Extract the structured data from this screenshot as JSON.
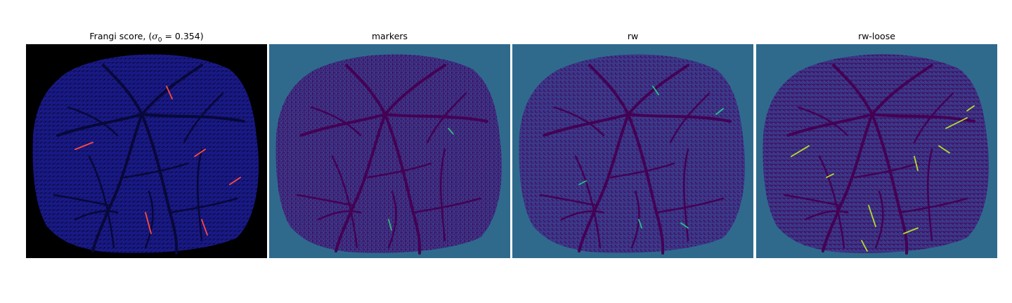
{
  "figure": {
    "panels": [
      {
        "id": "frangi",
        "title_text": "Frangi score, (",
        "title_symbol": "σ",
        "title_subscript": "0",
        "title_equals": " = 0.354)",
        "colormap": "gnuplot2",
        "background_color": "#000000",
        "tissue_color": "#1a1a8c",
        "vessel_color": "#08083a",
        "highlight_color": "#ff4a3a"
      },
      {
        "id": "markers",
        "title": "markers",
        "colormap": "viridis",
        "background_color": "#2f6a8c",
        "tissue_color": "#3a3a8a",
        "vessel_color": "#440154",
        "highlight_color": "#35b779"
      },
      {
        "id": "rw",
        "title": "rw",
        "colormap": "viridis",
        "background_color": "#2f6a8c",
        "tissue_color": "#3a3a8a",
        "vessel_color": "#440154",
        "highlight_color": "#21c58a"
      },
      {
        "id": "rw-loose",
        "title": "rw-loose",
        "colormap": "viridis",
        "background_color": "#2f6a8c",
        "tissue_color": "#3a3a8a",
        "vessel_color": "#440154",
        "highlight_color": "#b5de2b"
      }
    ]
  }
}
